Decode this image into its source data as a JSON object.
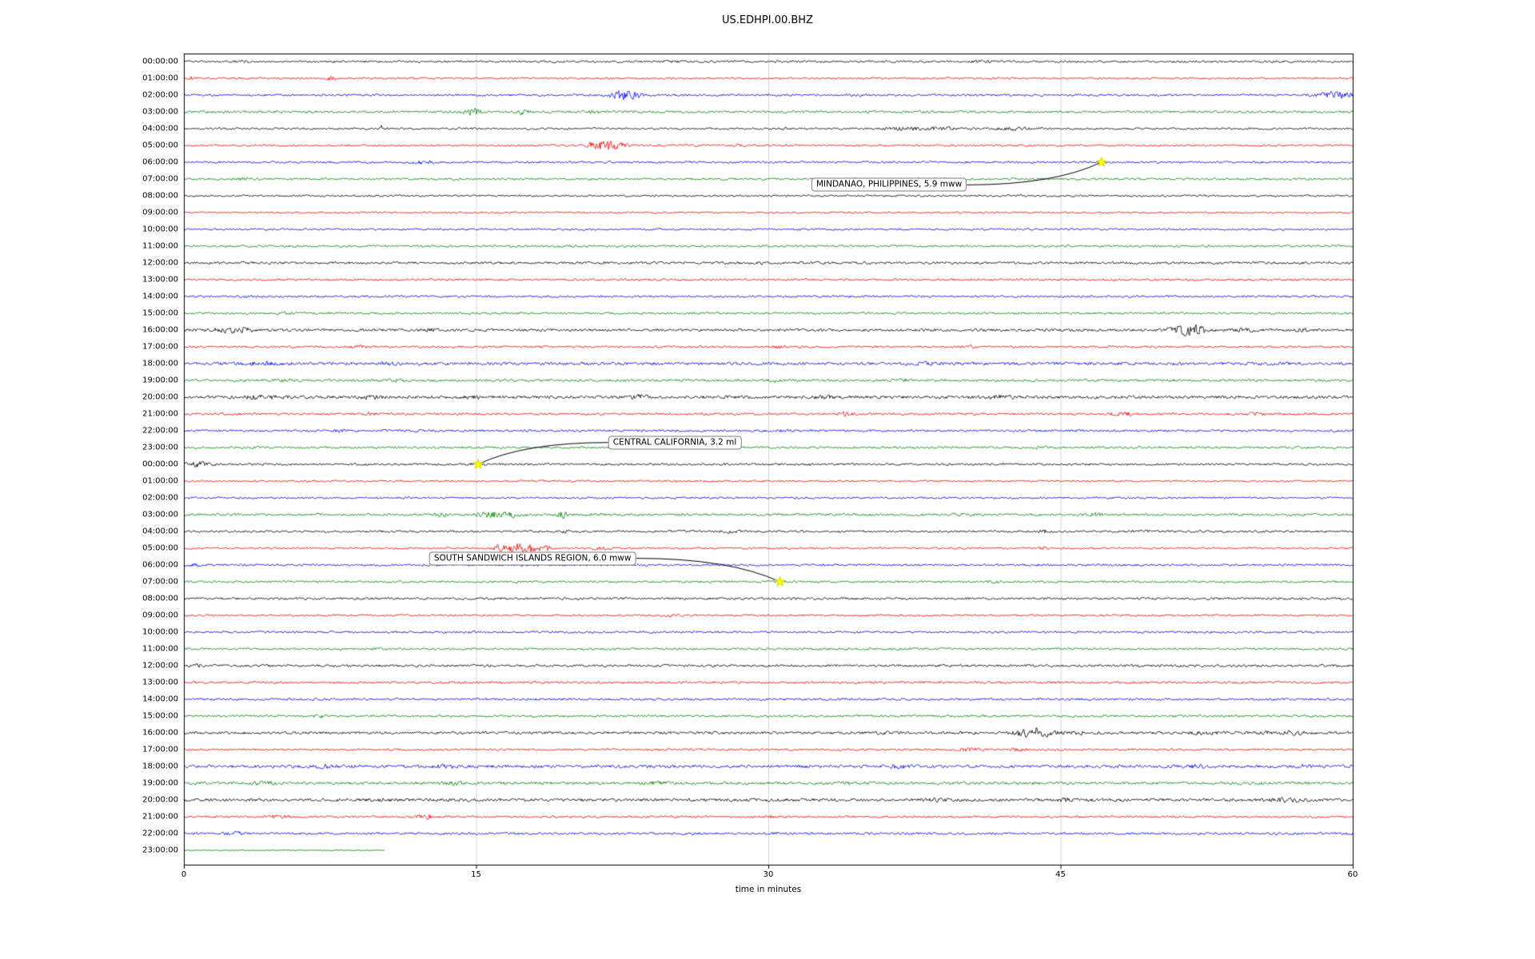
{
  "title": "US.EDHPI.00.BHZ",
  "chart_data": {
    "type": "line",
    "subtype": "helicorder-dayplot",
    "title": "US.EDHPI.00.BHZ",
    "xlabel": "time in minutes",
    "xlim": [
      0,
      60
    ],
    "xticks": [
      0,
      15,
      30,
      45,
      60
    ],
    "grid": "vertical-only",
    "trace_colors": [
      "#000000",
      "#ff0000",
      "#0000ff",
      "#008000"
    ],
    "star_color": "#ffff00",
    "rows": [
      {
        "label": "00:00:00",
        "c": 0,
        "amp": 1.2,
        "b": [
          [
            3.2,
            0.3,
            0.7
          ],
          [
            25.0,
            0.3,
            0.6
          ],
          [
            41.0,
            0.4,
            0.6
          ]
        ]
      },
      {
        "label": "01:00:00",
        "c": 1,
        "amp": 1.1,
        "b": [
          [
            0.4,
            0.2,
            1.5
          ],
          [
            7.6,
            0.15,
            2.5
          ]
        ]
      },
      {
        "label": "02:00:00",
        "c": 2,
        "amp": 1.2,
        "b": [
          [
            22.4,
            0.5,
            4
          ],
          [
            23.1,
            0.3,
            2.5
          ],
          [
            34.6,
            0.2,
            1.5
          ],
          [
            58.6,
            0.4,
            1.5
          ],
          [
            59.4,
            0.5,
            3
          ]
        ]
      },
      {
        "label": "03:00:00",
        "c": 3,
        "amp": 1.3,
        "b": [
          [
            14.9,
            0.3,
            3
          ],
          [
            17.4,
            0.25,
            2.5
          ],
          [
            21.0,
            0.2,
            1
          ]
        ]
      },
      {
        "label": "04:00:00",
        "c": 0,
        "amp": 1.1,
        "b": [
          [
            10.1,
            0.08,
            3.5
          ],
          [
            30.9,
            0.2,
            1
          ],
          [
            37.2,
            1.0,
            1.2
          ],
          [
            39.0,
            0.8,
            1.0
          ],
          [
            42.6,
            0.8,
            1.3
          ]
        ]
      },
      {
        "label": "05:00:00",
        "c": 1,
        "amp": 1.1,
        "b": [
          [
            20.9,
            0.2,
            2.5
          ],
          [
            21.6,
            0.35,
            5
          ],
          [
            22.3,
            0.3,
            3.5
          ],
          [
            28.6,
            0.3,
            1.2
          ]
        ]
      },
      {
        "label": "06:00:00",
        "c": 2,
        "amp": 1.2,
        "b": [
          [
            12.1,
            0.4,
            1.3
          ]
        ]
      },
      {
        "label": "07:00:00",
        "c": 3,
        "amp": 1.2,
        "b": [
          [
            3.0,
            0.3,
            0.8
          ]
        ]
      },
      {
        "label": "08:00:00",
        "c": 0,
        "amp": 1.1,
        "b": []
      },
      {
        "label": "09:00:00",
        "c": 1,
        "amp": 1.0,
        "b": []
      },
      {
        "label": "10:00:00",
        "c": 2,
        "amp": 1.1,
        "b": []
      },
      {
        "label": "11:00:00",
        "c": 3,
        "amp": 1.2,
        "b": []
      },
      {
        "label": "12:00:00",
        "c": 0,
        "amp": 1.4,
        "b": [
          [
            29.5,
            0.3,
            0.8
          ]
        ]
      },
      {
        "label": "13:00:00",
        "c": 1,
        "amp": 1.2,
        "b": []
      },
      {
        "label": "14:00:00",
        "c": 2,
        "amp": 1.2,
        "b": []
      },
      {
        "label": "15:00:00",
        "c": 3,
        "amp": 1.2,
        "b": [
          [
            5.5,
            0.4,
            1.0
          ]
        ]
      },
      {
        "label": "16:00:00",
        "c": 0,
        "amp": 1.5,
        "b": [
          [
            2.3,
            0.6,
            2.2
          ],
          [
            3.1,
            0.3,
            1.5
          ],
          [
            12.8,
            0.25,
            2.2
          ],
          [
            51.3,
            0.5,
            5
          ],
          [
            52.1,
            0.4,
            3
          ],
          [
            54.2,
            0.5,
            1.5
          ],
          [
            57.5,
            0.3,
            1.0
          ]
        ]
      },
      {
        "label": "17:00:00",
        "c": 1,
        "amp": 1.2,
        "b": [
          [
            9.0,
            0.3,
            1.0
          ],
          [
            30.5,
            0.2,
            1.0
          ],
          [
            40.2,
            0.3,
            1.0
          ]
        ]
      },
      {
        "label": "18:00:00",
        "c": 2,
        "amp": 1.7,
        "b": [
          [
            4.0,
            0.8,
            1.2
          ],
          [
            10.5,
            0.4,
            1.0
          ],
          [
            38.0,
            0.6,
            1.0
          ]
        ]
      },
      {
        "label": "19:00:00",
        "c": 3,
        "amp": 1.4,
        "b": [
          [
            5.2,
            0.4,
            1.2
          ],
          [
            11.0,
            0.3,
            1.0
          ],
          [
            30.3,
            0.2,
            1.5
          ],
          [
            36.8,
            0.3,
            1.2
          ]
        ]
      },
      {
        "label": "20:00:00",
        "c": 0,
        "amp": 1.7,
        "b": [
          [
            4.0,
            0.8,
            1.4
          ],
          [
            9.6,
            0.5,
            1.2
          ],
          [
            15.0,
            0.4,
            1.0
          ],
          [
            23.4,
            0.3,
            1.8
          ],
          [
            33.0,
            0.4,
            1.0
          ],
          [
            42.0,
            0.5,
            1.2
          ]
        ]
      },
      {
        "label": "21:00:00",
        "c": 1,
        "amp": 1.3,
        "b": [
          [
            9.5,
            0.3,
            1.0
          ],
          [
            34.0,
            0.3,
            1.8
          ],
          [
            48.2,
            0.4,
            2.2
          ],
          [
            55.0,
            0.3,
            1.0
          ]
        ]
      },
      {
        "label": "22:00:00",
        "c": 2,
        "amp": 1.3,
        "b": [
          [
            8.0,
            0.4,
            0.8
          ],
          [
            31.0,
            0.3,
            0.8
          ]
        ]
      },
      {
        "label": "23:00:00",
        "c": 3,
        "amp": 1.2,
        "b": [
          [
            3.5,
            0.3,
            0.8
          ],
          [
            44.0,
            0.3,
            0.8
          ]
        ]
      },
      {
        "label": "00:00:00",
        "c": 0,
        "amp": 1.2,
        "b": [
          [
            0.8,
            0.5,
            2.2
          ],
          [
            15.1,
            0.3,
            1.0
          ]
        ]
      },
      {
        "label": "01:00:00",
        "c": 1,
        "amp": 1.1,
        "b": [
          [
            6.5,
            0.2,
            0.8
          ]
        ]
      },
      {
        "label": "02:00:00",
        "c": 2,
        "amp": 1.1,
        "b": []
      },
      {
        "label": "03:00:00",
        "c": 3,
        "amp": 1.3,
        "b": [
          [
            13.2,
            0.3,
            1.2
          ],
          [
            15.8,
            0.5,
            2.8
          ],
          [
            16.9,
            0.4,
            2.2
          ],
          [
            19.4,
            0.15,
            3.5
          ],
          [
            21.0,
            0.3,
            1.2
          ],
          [
            40.0,
            0.3,
            1.2
          ],
          [
            46.8,
            0.25,
            1.5
          ]
        ]
      },
      {
        "label": "04:00:00",
        "c": 0,
        "amp": 1.2,
        "b": [
          [
            19.6,
            0.1,
            2.5
          ],
          [
            28.0,
            0.3,
            1.0
          ],
          [
            44.1,
            0.2,
            1.3
          ],
          [
            49.0,
            0.3,
            1.0
          ]
        ]
      },
      {
        "label": "05:00:00",
        "c": 1,
        "amp": 1.1,
        "b": [
          [
            16.3,
            0.25,
            3.5
          ],
          [
            17.1,
            0.3,
            6
          ],
          [
            17.9,
            0.25,
            4.5
          ],
          [
            18.6,
            0.2,
            2.5
          ],
          [
            21.3,
            0.3,
            1.2
          ],
          [
            44.2,
            0.2,
            1.0
          ]
        ]
      },
      {
        "label": "06:00:00",
        "c": 2,
        "amp": 1.2,
        "b": [
          [
            0.5,
            0.3,
            1.0
          ]
        ]
      },
      {
        "label": "07:00:00",
        "c": 3,
        "amp": 1.2,
        "b": [
          [
            41.5,
            0.2,
            1.0
          ]
        ]
      },
      {
        "label": "08:00:00",
        "c": 0,
        "amp": 1.3,
        "b": []
      },
      {
        "label": "09:00:00",
        "c": 1,
        "amp": 1.1,
        "b": [
          [
            25.0,
            0.3,
            0.8
          ]
        ]
      },
      {
        "label": "10:00:00",
        "c": 2,
        "amp": 1.2,
        "b": []
      },
      {
        "label": "11:00:00",
        "c": 3,
        "amp": 1.2,
        "b": [
          [
            10.0,
            0.3,
            0.8
          ]
        ]
      },
      {
        "label": "12:00:00",
        "c": 0,
        "amp": 1.4,
        "b": [
          [
            0.5,
            0.4,
            1.0
          ]
        ]
      },
      {
        "label": "13:00:00",
        "c": 1,
        "amp": 1.3,
        "b": []
      },
      {
        "label": "14:00:00",
        "c": 2,
        "amp": 1.3,
        "b": []
      },
      {
        "label": "15:00:00",
        "c": 3,
        "amp": 1.2,
        "b": [
          [
            7.0,
            0.3,
            1.0
          ]
        ]
      },
      {
        "label": "16:00:00",
        "c": 0,
        "amp": 1.5,
        "b": [
          [
            36.0,
            0.3,
            1.2
          ],
          [
            43.3,
            0.5,
            4.5
          ],
          [
            44.1,
            0.4,
            3.5
          ],
          [
            45.8,
            0.4,
            1.5
          ],
          [
            52.5,
            0.6,
            1.2
          ],
          [
            55.5,
            0.3,
            1.2
          ],
          [
            57.0,
            0.4,
            1.8
          ]
        ]
      },
      {
        "label": "17:00:00",
        "c": 1,
        "amp": 1.2,
        "b": [
          [
            33.5,
            0.2,
            1.0
          ],
          [
            40.3,
            0.4,
            1.8
          ],
          [
            42.8,
            0.3,
            1.2
          ]
        ]
      },
      {
        "label": "18:00:00",
        "c": 2,
        "amp": 1.7,
        "b": [
          [
            7.0,
            0.5,
            1.2
          ],
          [
            13.5,
            0.4,
            1.2
          ],
          [
            36.5,
            0.5,
            1.3
          ],
          [
            52.0,
            0.4,
            1.2
          ],
          [
            57.5,
            0.3,
            1.0
          ]
        ]
      },
      {
        "label": "19:00:00",
        "c": 3,
        "amp": 1.5,
        "b": [
          [
            4.2,
            0.5,
            1.2
          ],
          [
            13.8,
            0.4,
            1.2
          ],
          [
            24.3,
            0.4,
            1.2
          ],
          [
            34.0,
            0.3,
            1.0
          ]
        ]
      },
      {
        "label": "20:00:00",
        "c": 0,
        "amp": 1.7,
        "b": [
          [
            10.0,
            0.5,
            1.0
          ],
          [
            38.6,
            0.4,
            1.3
          ],
          [
            45.2,
            0.3,
            1.2
          ],
          [
            56.6,
            0.5,
            1.4
          ]
        ]
      },
      {
        "label": "21:00:00",
        "c": 1,
        "amp": 1.2,
        "b": [
          [
            4.9,
            0.4,
            1.8
          ],
          [
            12.4,
            0.4,
            2.2
          ],
          [
            30.0,
            0.2,
            1.0
          ]
        ]
      },
      {
        "label": "22:00:00",
        "c": 2,
        "amp": 1.3,
        "b": [
          [
            2.6,
            0.4,
            1.2
          ],
          [
            30.7,
            0.3,
            1.0
          ]
        ]
      },
      {
        "label": "23:00:00",
        "c": 3,
        "amp": 0.5,
        "end": 10.3,
        "b": []
      }
    ],
    "events": [
      {
        "text": "MINDANAO, PHILIPPINES, 5.9 mww",
        "star_row": 6,
        "star_x": 47.1,
        "box_row": 7.35,
        "box_x": 36.2,
        "anchor": "right"
      },
      {
        "text": "CENTRAL CALIFORNIA, 3.2 ml",
        "star_row": 24,
        "star_x": 15.1,
        "box_row": 22.7,
        "box_x": 25.2,
        "anchor": "left"
      },
      {
        "text": "SOUTH SANDWICH ISLANDS REGION, 6.0 mww",
        "star_row": 31,
        "star_x": 30.6,
        "box_row": 29.6,
        "box_x": 17.9,
        "anchor": "right"
      }
    ]
  }
}
